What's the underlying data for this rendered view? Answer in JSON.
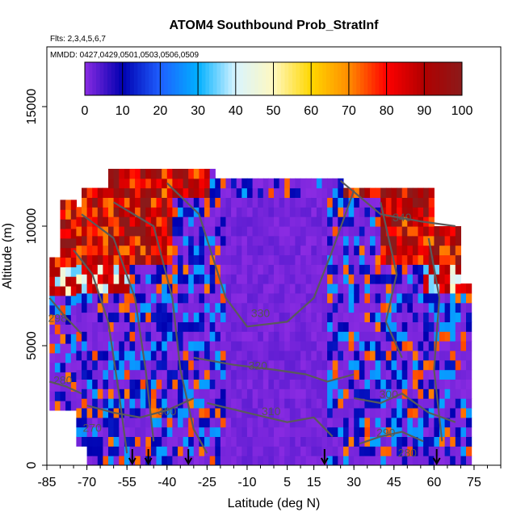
{
  "chart_data": {
    "type": "heatmap",
    "title": "ATOM4 Southbound Prob_StratInf",
    "subtitle": "Flts: 2,3,4,5,6,7",
    "note": "MMDD: 0427,0429,0501,0503,0506,0509",
    "xlabel": "Latitude (deg N)",
    "ylabel": "Altitude (m)",
    "xlim": [
      -85,
      85
    ],
    "ylim": [
      0,
      17500
    ],
    "x_ticks": [
      "-85",
      "-70",
      "-55",
      "-40",
      "-25",
      "-10",
      "5",
      "15",
      "30",
      "45",
      "60",
      "75"
    ],
    "x_tick_values": [
      -85,
      -70,
      -55,
      -40,
      -25,
      -10,
      5,
      15,
      30,
      45,
      60,
      75
    ],
    "y_ticks": [
      "0",
      "5000",
      "10000",
      "15000"
    ],
    "y_tick_values": [
      0,
      5000,
      10000,
      15000
    ],
    "colorbar": {
      "range": [
        0,
        100
      ],
      "ticks": [
        "0",
        "10",
        "20",
        "30",
        "40",
        "50",
        "60",
        "70",
        "80",
        "90",
        "100"
      ],
      "colors": [
        "#8a2be2",
        "#0000b0",
        "#1f5fff",
        "#00b0ff",
        "#d8f4ff",
        "#fff8c0",
        "#ffd700",
        "#ff8c00",
        "#ff0000",
        "#b00000",
        "#8b1a1a"
      ]
    },
    "contours": [
      {
        "label": "340",
        "label_lat": 48,
        "label_alt": 10200
      },
      {
        "label": "330",
        "label_lat": -5,
        "label_alt": 6200
      },
      {
        "label": "320",
        "label_lat": -6,
        "label_alt": 4000
      },
      {
        "label": "310",
        "label_lat": -1,
        "label_alt": 2100
      },
      {
        "label": "300",
        "label_lat": -40,
        "label_alt": 2100
      },
      {
        "label": "300",
        "label_lat": 43,
        "label_alt": 2800
      },
      {
        "label": "298",
        "label_lat": -81,
        "label_alt": 6000
      },
      {
        "label": "280",
        "label_lat": -79,
        "label_alt": 3400
      },
      {
        "label": "290",
        "label_lat": 42,
        "label_alt": 1200
      },
      {
        "label": "280",
        "label_lat": 50,
        "label_alt": 350
      },
      {
        "label": "270",
        "label_lat": -68,
        "label_alt": 1400
      }
    ],
    "flight_markers_lat": [
      -53,
      -47,
      -32,
      19,
      61
    ],
    "colorbar_legend_placement": "top",
    "grid": false
  }
}
